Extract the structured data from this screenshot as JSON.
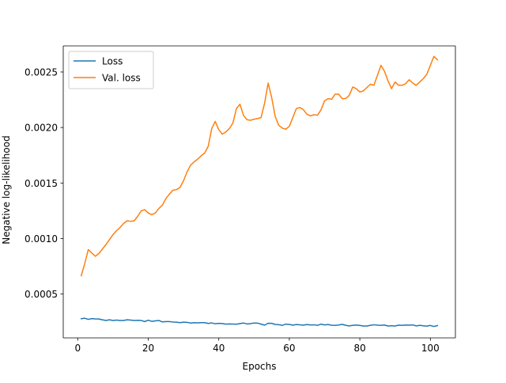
{
  "chart_data": {
    "type": "line",
    "title": "",
    "xlabel": "Epochs",
    "ylabel": "Negative log-likelihood",
    "xlim": [
      -4.1,
      107.1
    ],
    "ylim": [
      0.000105,
      0.002735
    ],
    "xticks": [
      0,
      20,
      40,
      60,
      80,
      100
    ],
    "xtick_labels": [
      "0",
      "20",
      "40",
      "60",
      "80",
      "100"
    ],
    "yticks": [
      0.0005,
      0.001,
      0.0015,
      0.002,
      0.0025
    ],
    "ytick_labels": [
      "0.0005",
      "0.0010",
      "0.0015",
      "0.0020",
      "0.0025"
    ],
    "grid": false,
    "legend_position": "upper left",
    "x": [
      1,
      2,
      3,
      4,
      5,
      6,
      7,
      8,
      9,
      10,
      11,
      12,
      13,
      14,
      15,
      16,
      17,
      18,
      19,
      20,
      21,
      22,
      23,
      24,
      25,
      26,
      27,
      28,
      29,
      30,
      31,
      32,
      33,
      34,
      35,
      36,
      37,
      38,
      39,
      40,
      41,
      42,
      43,
      44,
      45,
      46,
      47,
      48,
      49,
      50,
      51,
      52,
      53,
      54,
      55,
      56,
      57,
      58,
      59,
      60,
      61,
      62,
      63,
      64,
      65,
      66,
      67,
      68,
      69,
      70,
      71,
      72,
      73,
      74,
      75,
      76,
      77,
      78,
      79,
      80,
      81,
      82,
      83,
      84,
      85,
      86,
      87,
      88,
      89,
      90,
      91,
      92,
      93,
      94,
      95,
      96,
      97,
      98,
      99,
      100,
      101,
      102
    ],
    "series": [
      {
        "name": "Loss",
        "color": "#1f77b4",
        "values": [
          0.000278,
          0.000282,
          0.000272,
          0.000279,
          0.000276,
          0.000275,
          0.000268,
          0.000262,
          0.000268,
          0.000262,
          0.000265,
          0.000262,
          0.000262,
          0.000268,
          0.000265,
          0.000262,
          0.000264,
          0.000262,
          0.000252,
          0.000264,
          0.000254,
          0.000258,
          0.000262,
          0.000249,
          0.000252,
          0.000252,
          0.000248,
          0.000247,
          0.000242,
          0.000247,
          0.000245,
          0.000239,
          0.000242,
          0.00024,
          0.000242,
          0.000242,
          0.000235,
          0.00024,
          0.000232,
          0.000236,
          0.000234,
          0.000229,
          0.000231,
          0.00023,
          0.000228,
          0.000234,
          0.000239,
          0.000231,
          0.000233,
          0.000239,
          0.000238,
          0.000229,
          0.00022,
          0.000237,
          0.000236,
          0.000226,
          0.000224,
          0.000218,
          0.000229,
          0.000226,
          0.00022,
          0.000225,
          0.000223,
          0.00022,
          0.000225,
          0.000222,
          0.000223,
          0.000218,
          0.000229,
          0.000222,
          0.000225,
          0.000219,
          0.000218,
          0.000221,
          0.000227,
          0.000218,
          0.000213,
          0.000218,
          0.000221,
          0.000217,
          0.000212,
          0.000212,
          0.000218,
          0.000223,
          0.00022,
          0.000218,
          0.000221,
          0.000212,
          0.000215,
          0.000212,
          0.00022,
          0.000218,
          0.000221,
          0.00022,
          0.000222,
          0.000213,
          0.000218,
          0.000214,
          0.000211,
          0.000217,
          0.000208,
          0.000216
        ]
      },
      {
        "name": "Val. loss",
        "color": "#ff7f0e",
        "values": [
          0.000665,
          0.000775,
          0.0009,
          0.00087,
          0.00084,
          0.000865,
          0.000905,
          0.000945,
          0.00099,
          0.001035,
          0.00107,
          0.0011,
          0.001135,
          0.00116,
          0.001155,
          0.00116,
          0.0012,
          0.00125,
          0.00126,
          0.00123,
          0.001215,
          0.00123,
          0.00127,
          0.0013,
          0.00136,
          0.0014,
          0.001435,
          0.00144,
          0.00146,
          0.00152,
          0.0016,
          0.00166,
          0.00169,
          0.001715,
          0.001745,
          0.00177,
          0.00183,
          0.00199,
          0.002055,
          0.00198,
          0.00194,
          0.00196,
          0.00199,
          0.00204,
          0.00217,
          0.00221,
          0.00211,
          0.00207,
          0.002065,
          0.002075,
          0.00208,
          0.00209,
          0.00222,
          0.0024,
          0.00227,
          0.0021,
          0.00202,
          0.001995,
          0.001985,
          0.00201,
          0.00209,
          0.00217,
          0.00218,
          0.00216,
          0.00212,
          0.002105,
          0.002115,
          0.00211,
          0.00216,
          0.00224,
          0.00226,
          0.002255,
          0.0023,
          0.0023,
          0.00226,
          0.00226,
          0.00229,
          0.002365,
          0.00235,
          0.00232,
          0.00233,
          0.00236,
          0.00239,
          0.00238,
          0.00247,
          0.00256,
          0.002505,
          0.00242,
          0.00235,
          0.00241,
          0.00238,
          0.00238,
          0.002395,
          0.00243,
          0.0024,
          0.00238,
          0.00241,
          0.00244,
          0.00248,
          0.00256,
          0.00264,
          0.00261
        ]
      }
    ]
  }
}
